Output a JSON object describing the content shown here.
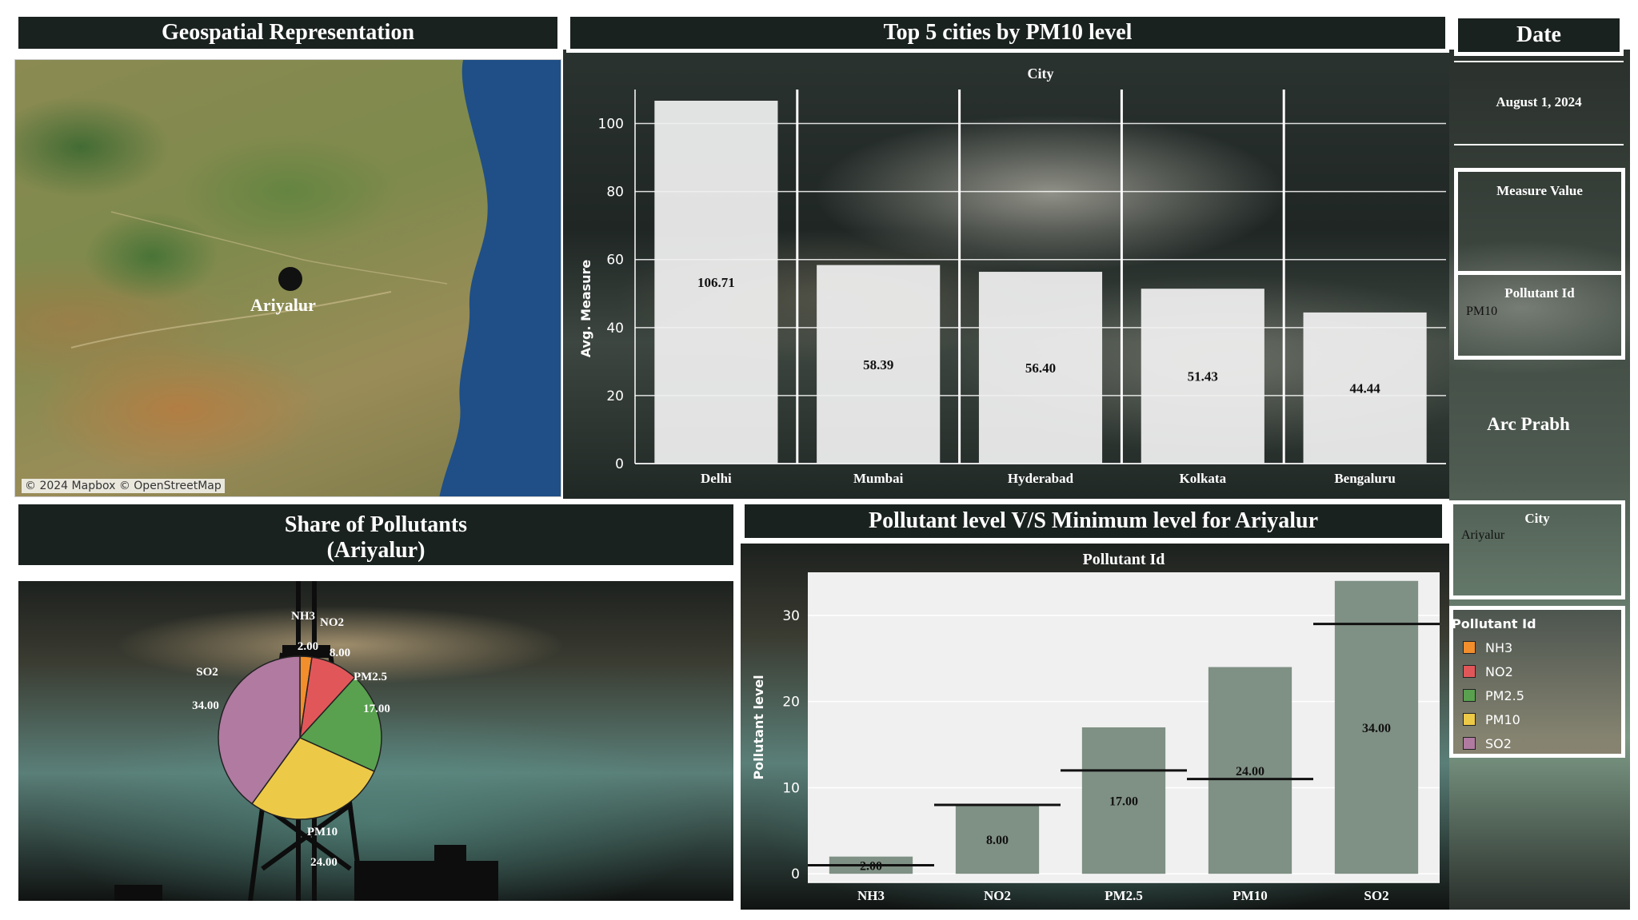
{
  "map_panel": {
    "title": "Geospatial Representation",
    "marker_label": "Ariyalur",
    "attribution": "© 2024 Mapbox © OpenStreetMap"
  },
  "bar_chart": {
    "title": "Top 5 cities by PM10 level",
    "column_header": "City",
    "ylabel": "Avg. Measure",
    "yticks": [
      "0",
      "20",
      "40",
      "60",
      "80",
      "100"
    ]
  },
  "side_panel": {
    "date_title": "Date",
    "date_value": "August 1, 2024",
    "measure_value_title": "Measure Value",
    "pollutant_filter_title": "Pollutant Id",
    "pollutant_filter_value": "PM10",
    "author": "Arc Prabh",
    "city_filter_title": "City",
    "city_filter_value": "Ariyalur",
    "legend_title": "Pollutant Id"
  },
  "pie_panel": {
    "title_line1": "Share of Pollutants",
    "title_line2": "(Ariyalur)"
  },
  "level_chart": {
    "title": "Pollutant level V/S Minimum level for Ariyalur",
    "column_header": "Pollutant Id",
    "ylabel": "Pollutant level",
    "yticks": [
      "0",
      "10",
      "20",
      "30"
    ]
  },
  "colors": {
    "NH3": "#f28e2b",
    "NO2": "#e15759",
    "PM2.5": "#59a14f",
    "PM10": "#edc948",
    "SO2": "#b07aa1",
    "bar_fill": "#f0f0f0",
    "level_bar": "#7f9084"
  },
  "chart_data": [
    {
      "type": "bar",
      "title": "Top 5 cities by PM10 level",
      "xlabel": "City",
      "ylabel": "Avg. Measure",
      "categories": [
        "Delhi",
        "Mumbai",
        "Hyderabad",
        "Kolkata",
        "Bengaluru"
      ],
      "values": [
        106.71,
        58.39,
        56.4,
        51.43,
        44.44
      ],
      "value_labels": [
        "106.71",
        "58.39",
        "56.40",
        "51.43",
        "44.44"
      ],
      "ylim": [
        0,
        110
      ],
      "grid": true
    },
    {
      "type": "pie",
      "title": "Share of Pollutants (Ariyalur)",
      "categories": [
        "NH3",
        "NO2",
        "PM2.5",
        "PM10",
        "SO2"
      ],
      "values": [
        2,
        8,
        17,
        24,
        34
      ],
      "value_labels": [
        "2.00",
        "8.00",
        "17.00",
        "24.00",
        "34.00"
      ]
    },
    {
      "type": "bar",
      "title": "Pollutant level V/S Minimum level for Ariyalur",
      "xlabel": "Pollutant Id",
      "ylabel": "Pollutant level",
      "categories": [
        "NH3",
        "NO2",
        "PM2.5",
        "PM10",
        "SO2"
      ],
      "values": [
        2,
        8,
        17,
        24,
        34
      ],
      "value_labels": [
        "2.00",
        "8.00",
        "17.00",
        "24.00",
        "34.00"
      ],
      "reference_lines": [
        1,
        8,
        12,
        11,
        29
      ],
      "ylim": [
        -1,
        35
      ],
      "grid": true
    }
  ]
}
